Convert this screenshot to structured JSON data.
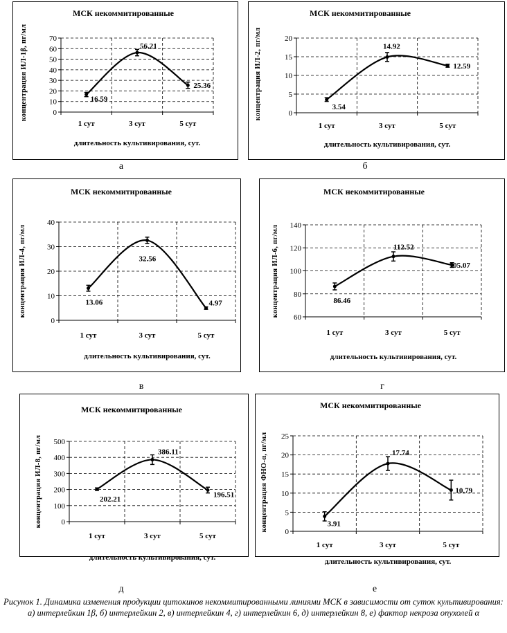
{
  "caption": "Рисунок 1. Динамика изменения продукции цитокинов некоммитированными линиями МСК в зависимости от суток культивирования: а) интерлейкин 1β, б) интерлейкин 2, в) интерлейкин 4, г) интерлейкин 6, д) интерлейкин 8, е) фактор некроза опухолей α",
  "chart_data": [
    {
      "id": "a",
      "type": "line",
      "panel_label": "а",
      "title": "МСК некоммитированные",
      "xlabel": "длительность культивирования, сут.",
      "ylabel": "концентрация ИЛ-1β, пг/мл",
      "categories": [
        "1 сут",
        "3 сут",
        "5 сут"
      ],
      "values": [
        16.59,
        56.21,
        25.36
      ],
      "data_labels": [
        "16.59",
        "56.21",
        "25.36"
      ],
      "errors": [
        2,
        3,
        3
      ],
      "ylim": [
        0,
        70
      ],
      "ytick": 10,
      "grid": true,
      "curve": "smooth"
    },
    {
      "id": "b",
      "type": "line",
      "panel_label": "б",
      "title": "МСК некоммитированные",
      "xlabel": "длительность культивирования, сут.",
      "ylabel": "концентрация ИЛ-2, пг/мл",
      "categories": [
        "1 сут",
        "3 сут",
        "5 сут"
      ],
      "values": [
        3.54,
        14.92,
        12.59
      ],
      "data_labels": [
        "3.54",
        "14.92",
        "12.59"
      ],
      "errors": [
        0.5,
        1.2,
        0.4
      ],
      "ylim": [
        0,
        20
      ],
      "ytick": 5,
      "grid": true,
      "curve": "smooth"
    },
    {
      "id": "c",
      "type": "line",
      "panel_label": "в",
      "title": "МСК некоммитированные",
      "xlabel": "длительность культивирования, сут.",
      "ylabel": "концентрация ИЛ-4, пг/мл",
      "categories": [
        "1 сут",
        "3 сут",
        "5 сут"
      ],
      "values": [
        13.06,
        32.56,
        4.97
      ],
      "data_labels": [
        "13.06",
        "32.56",
        "4.97"
      ],
      "errors": [
        1.2,
        1.3,
        0.5
      ],
      "ylim": [
        0,
        40
      ],
      "ytick": 10,
      "grid": true,
      "curve": "smooth"
    },
    {
      "id": "d",
      "type": "line",
      "panel_label": "г",
      "title": "МСК некоммитированные",
      "xlabel": "длительность культивирования, сут.",
      "ylabel": "концентрация ИЛ-6, пг/мл",
      "categories": [
        "1 сут",
        "3 сут",
        "5 сут"
      ],
      "values": [
        86.46,
        112.52,
        105.07
      ],
      "data_labels": [
        "86.46",
        "112.52",
        "105.07"
      ],
      "errors": [
        3,
        4,
        2
      ],
      "ylim": [
        60,
        140
      ],
      "ytick": 20,
      "grid": true,
      "curve": "smooth"
    },
    {
      "id": "e",
      "type": "line",
      "panel_label": "д",
      "title": "МСК некоммитированные",
      "xlabel": "длительность культивирования, сут.",
      "ylabel": "концентрация ИЛ-8, пг/мл",
      "categories": [
        "1 сут",
        "3 сут",
        "5 сут"
      ],
      "values": [
        202.21,
        386.11,
        196.51
      ],
      "data_labels": [
        "202.21",
        "386.11",
        "196.51"
      ],
      "errors": [
        8,
        30,
        18
      ],
      "ylim": [
        0,
        500
      ],
      "ytick": 100,
      "grid": true,
      "curve": "smooth"
    },
    {
      "id": "f",
      "type": "line",
      "panel_label": "е",
      "title": "МСК некоммитированные",
      "xlabel": "длительность культивирования, сут.",
      "ylabel": "концентрация ФНО-α, пг/мл",
      "categories": [
        "1 сут",
        "3 сут",
        "5 сут"
      ],
      "values": [
        3.91,
        17.74,
        10.79
      ],
      "data_labels": [
        "3.91",
        "17.74",
        "10.79"
      ],
      "errors": [
        1.2,
        1.8,
        2.6
      ],
      "ylim": [
        0,
        25
      ],
      "ytick": 5,
      "grid": true,
      "curve": "smooth"
    }
  ]
}
